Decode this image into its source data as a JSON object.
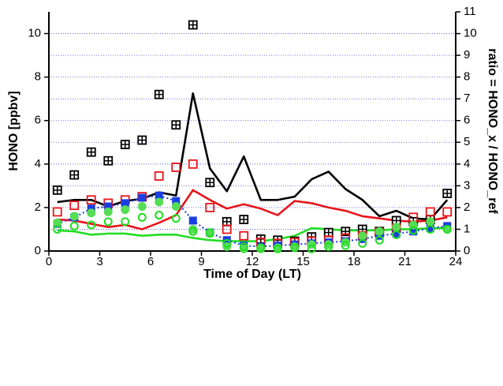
{
  "chart_data": {
    "type": "line",
    "x_label": "Time of Day (LT)",
    "y_label": "HONO [ppbv]",
    "y2_label": "ratio = HONO_x / HONO_ref",
    "xlim": [
      0,
      24
    ],
    "xticks": [
      0,
      3,
      6,
      9,
      12,
      15,
      18,
      21,
      24
    ],
    "ylim": [
      0,
      11
    ],
    "yticks": [
      0,
      2,
      4,
      6,
      8,
      10
    ],
    "y2lim": [
      0,
      11
    ],
    "y2ticks": [
      0,
      1,
      2,
      3,
      4,
      5,
      6,
      7,
      8,
      9,
      10,
      11
    ],
    "grid": true,
    "x": [
      0.5,
      1.5,
      2.5,
      3.5,
      4.5,
      5.5,
      6.5,
      7.5,
      8.5,
      9.5,
      10.5,
      11.5,
      12.5,
      13.5,
      14.5,
      15.5,
      16.5,
      17.5,
      18.5,
      19.5,
      20.5,
      21.5,
      22.5,
      23.5
    ],
    "series": [
      {
        "color": "#000000",
        "marker": "none",
        "linestyle": "solid",
        "values": [
          2.25,
          2.35,
          2.35,
          2.05,
          2.3,
          2.4,
          2.7,
          2.55,
          7.25,
          3.8,
          2.75,
          4.35,
          2.35,
          2.35,
          2.5,
          3.3,
          3.65,
          2.85,
          2.35,
          1.6,
          1.85,
          1.5,
          1.45,
          2.35
        ]
      },
      {
        "color": "#e8141a",
        "marker": "none",
        "linestyle": "solid",
        "values": [
          1.45,
          1.4,
          1.25,
          1.1,
          1.2,
          1.0,
          1.3,
          1.65,
          2.8,
          2.35,
          1.95,
          2.15,
          1.95,
          1.65,
          2.3,
          2.2,
          2.0,
          1.85,
          1.6,
          1.5,
          1.4,
          1.35,
          1.4,
          1.55
        ]
      },
      {
        "color": "#22dd22",
        "marker": "none",
        "linestyle": "solid",
        "values": [
          0.95,
          0.9,
          0.75,
          0.8,
          0.8,
          0.7,
          0.75,
          0.75,
          0.6,
          0.5,
          0.45,
          0.45,
          0.45,
          0.55,
          0.7,
          1.05,
          1.0,
          0.95,
          0.95,
          0.95,
          1.0,
          1.0,
          1.05,
          1.05
        ]
      },
      {
        "color": "#000000",
        "marker": "crossed-square",
        "linestyle": "none",
        "axis": "y2",
        "values": [
          2.8,
          3.5,
          4.55,
          4.15,
          4.9,
          5.1,
          7.2,
          5.8,
          10.4,
          3.15,
          1.35,
          1.45,
          0.55,
          0.5,
          0.45,
          0.65,
          0.85,
          0.9,
          1.0,
          0.9,
          1.4,
          1.35,
          1.45,
          2.65
        ]
      },
      {
        "color": "#e8141a",
        "marker": "open-square",
        "linestyle": "none",
        "axis": "y2",
        "values": [
          1.8,
          2.1,
          2.35,
          2.2,
          2.35,
          2.5,
          3.45,
          3.85,
          4.0,
          2.0,
          1.0,
          0.7,
          0.4,
          0.35,
          0.4,
          0.45,
          0.5,
          0.6,
          0.7,
          0.85,
          1.05,
          1.55,
          1.8,
          1.8
        ]
      },
      {
        "color": "#1a3fe0",
        "marker": "filled-square",
        "linestyle": "dashed",
        "axis": "y2",
        "values": [
          1.25,
          1.55,
          1.95,
          2.05,
          2.2,
          2.45,
          2.55,
          2.3,
          1.4,
          0.85,
          0.5,
          0.25,
          0.2,
          0.25,
          0.3,
          0.35,
          0.4,
          0.45,
          0.55,
          0.7,
          0.8,
          0.9,
          1.05,
          1.15
        ]
      },
      {
        "color": "#55dd55",
        "marker": "filled-circle",
        "linestyle": "none",
        "axis": "y2",
        "values": [
          1.3,
          1.6,
          1.75,
          1.8,
          1.9,
          2.05,
          2.25,
          2.05,
          1.0,
          0.8,
          0.2,
          0.1,
          0.1,
          0.15,
          0.2,
          0.3,
          0.3,
          0.4,
          0.7,
          0.9,
          1.1,
          1.2,
          1.35,
          1.0
        ]
      },
      {
        "color": "#22dd22",
        "marker": "open-circle",
        "linestyle": "none",
        "axis": "y2",
        "values": [
          1.0,
          1.15,
          1.2,
          1.35,
          1.35,
          1.55,
          1.65,
          1.5,
          0.9,
          0.85,
          0.35,
          0.2,
          0.15,
          0.1,
          0.15,
          0.1,
          0.2,
          0.25,
          0.35,
          0.5,
          0.75,
          0.95,
          1.0,
          1.0
        ]
      }
    ]
  }
}
